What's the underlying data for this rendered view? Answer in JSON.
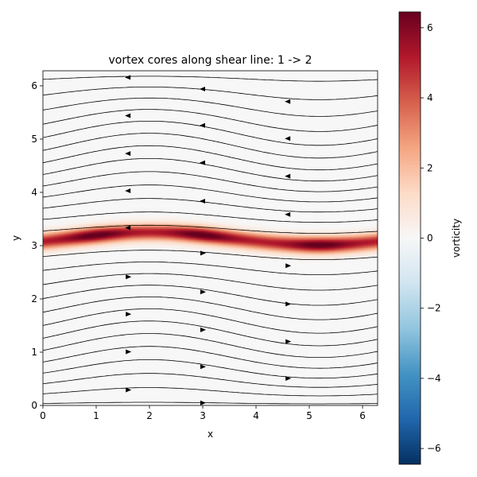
{
  "chart_data": {
    "type": "heatmap",
    "title": "vortex cores along shear line: 1 -> 2",
    "xlabel": "x",
    "ylabel": "y",
    "xlim": [
      0,
      6.283
    ],
    "ylim": [
      0,
      6.283
    ],
    "xticks": [
      0,
      1,
      2,
      3,
      4,
      5,
      6
    ],
    "yticks": [
      0,
      1,
      2,
      3,
      4,
      5,
      6
    ],
    "colorbar": {
      "label": "vorticity",
      "colormap": "RdBu_r",
      "range": [
        -6.45,
        6.45
      ],
      "ticks": [
        -6,
        -4,
        -2,
        0,
        2,
        4,
        6
      ],
      "tick_labels": [
        "−6",
        "−4",
        "−2",
        "0",
        "2",
        "4",
        "6"
      ]
    },
    "shear_layer": {
      "center_y": 3.14,
      "perturbation_amplitude": 0.12,
      "peak_vorticity": 6.4,
      "vortex_cores_x": [
        1.0,
        3.0,
        5.2
      ]
    },
    "overlay": "streamlines",
    "flow": "leftward above shear line, rightward below",
    "colors": {
      "background_field": "#f7f7f7",
      "core_color": "#67001f",
      "streamline_color": "#000000"
    }
  }
}
